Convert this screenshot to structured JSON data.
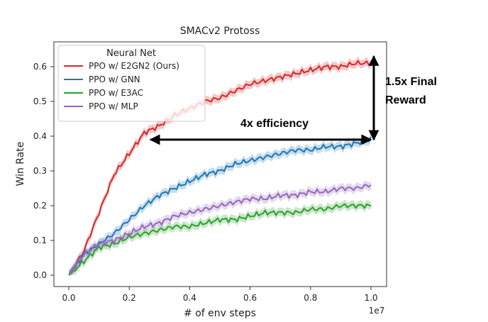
{
  "chart_data": {
    "type": "line",
    "title": "SMACv2 Protoss",
    "xlabel": "# of env steps",
    "ylabel": "Win Rate",
    "x_offset_label": "1e7",
    "xlim": [
      0.0,
      1.0
    ],
    "ylim": [
      0.0,
      0.6
    ],
    "xticks": [
      "0.0",
      "0.2",
      "0.4",
      "0.6",
      "0.8",
      "1.0"
    ],
    "yticks": [
      "0.0",
      "0.1",
      "0.2",
      "0.3",
      "0.4",
      "0.5",
      "0.6"
    ],
    "legend": {
      "title": "Neural Net",
      "placement": "top-left"
    },
    "grid": false,
    "x": [
      0.0,
      0.05,
      0.1,
      0.15,
      0.2,
      0.25,
      0.3,
      0.35,
      0.4,
      0.45,
      0.5,
      0.55,
      0.6,
      0.65,
      0.7,
      0.75,
      0.8,
      0.85,
      0.9,
      0.95,
      1.0
    ],
    "series": [
      {
        "name": "PPO w/ E2GN2 (Ours)",
        "color": "#d62728",
        "values": [
          0.0,
          0.07,
          0.18,
          0.29,
          0.35,
          0.41,
          0.43,
          0.46,
          0.48,
          0.5,
          0.51,
          0.53,
          0.55,
          0.56,
          0.57,
          0.58,
          0.59,
          0.6,
          0.6,
          0.61,
          0.61
        ]
      },
      {
        "name": "PPO w/ GNN",
        "color": "#1f77b4",
        "values": [
          0.0,
          0.06,
          0.09,
          0.12,
          0.16,
          0.2,
          0.23,
          0.25,
          0.27,
          0.29,
          0.3,
          0.32,
          0.33,
          0.34,
          0.35,
          0.36,
          0.36,
          0.37,
          0.37,
          0.38,
          0.39
        ]
      },
      {
        "name": "PPO w/ E3AC",
        "color": "#2ca02c",
        "values": [
          0.0,
          0.04,
          0.08,
          0.09,
          0.11,
          0.12,
          0.13,
          0.14,
          0.14,
          0.15,
          0.16,
          0.16,
          0.17,
          0.18,
          0.18,
          0.18,
          0.19,
          0.19,
          0.2,
          0.2,
          0.2
        ]
      },
      {
        "name": "PPO w/ MLP",
        "color": "#9467bd",
        "values": [
          0.0,
          0.06,
          0.09,
          0.1,
          0.12,
          0.14,
          0.15,
          0.17,
          0.18,
          0.19,
          0.2,
          0.21,
          0.22,
          0.22,
          0.23,
          0.23,
          0.24,
          0.24,
          0.25,
          0.25,
          0.26
        ]
      }
    ],
    "annotations": [
      {
        "text": "4x efficiency",
        "type": "double-arrow-horizontal",
        "from": [
          0.27,
          0.39
        ],
        "to": [
          1.0,
          0.39
        ]
      },
      {
        "text_lines": [
          "1.5x Final",
          "Reward"
        ],
        "type": "double-arrow-vertical",
        "from": [
          1.0,
          0.39
        ],
        "to": [
          1.0,
          0.63
        ]
      }
    ]
  }
}
